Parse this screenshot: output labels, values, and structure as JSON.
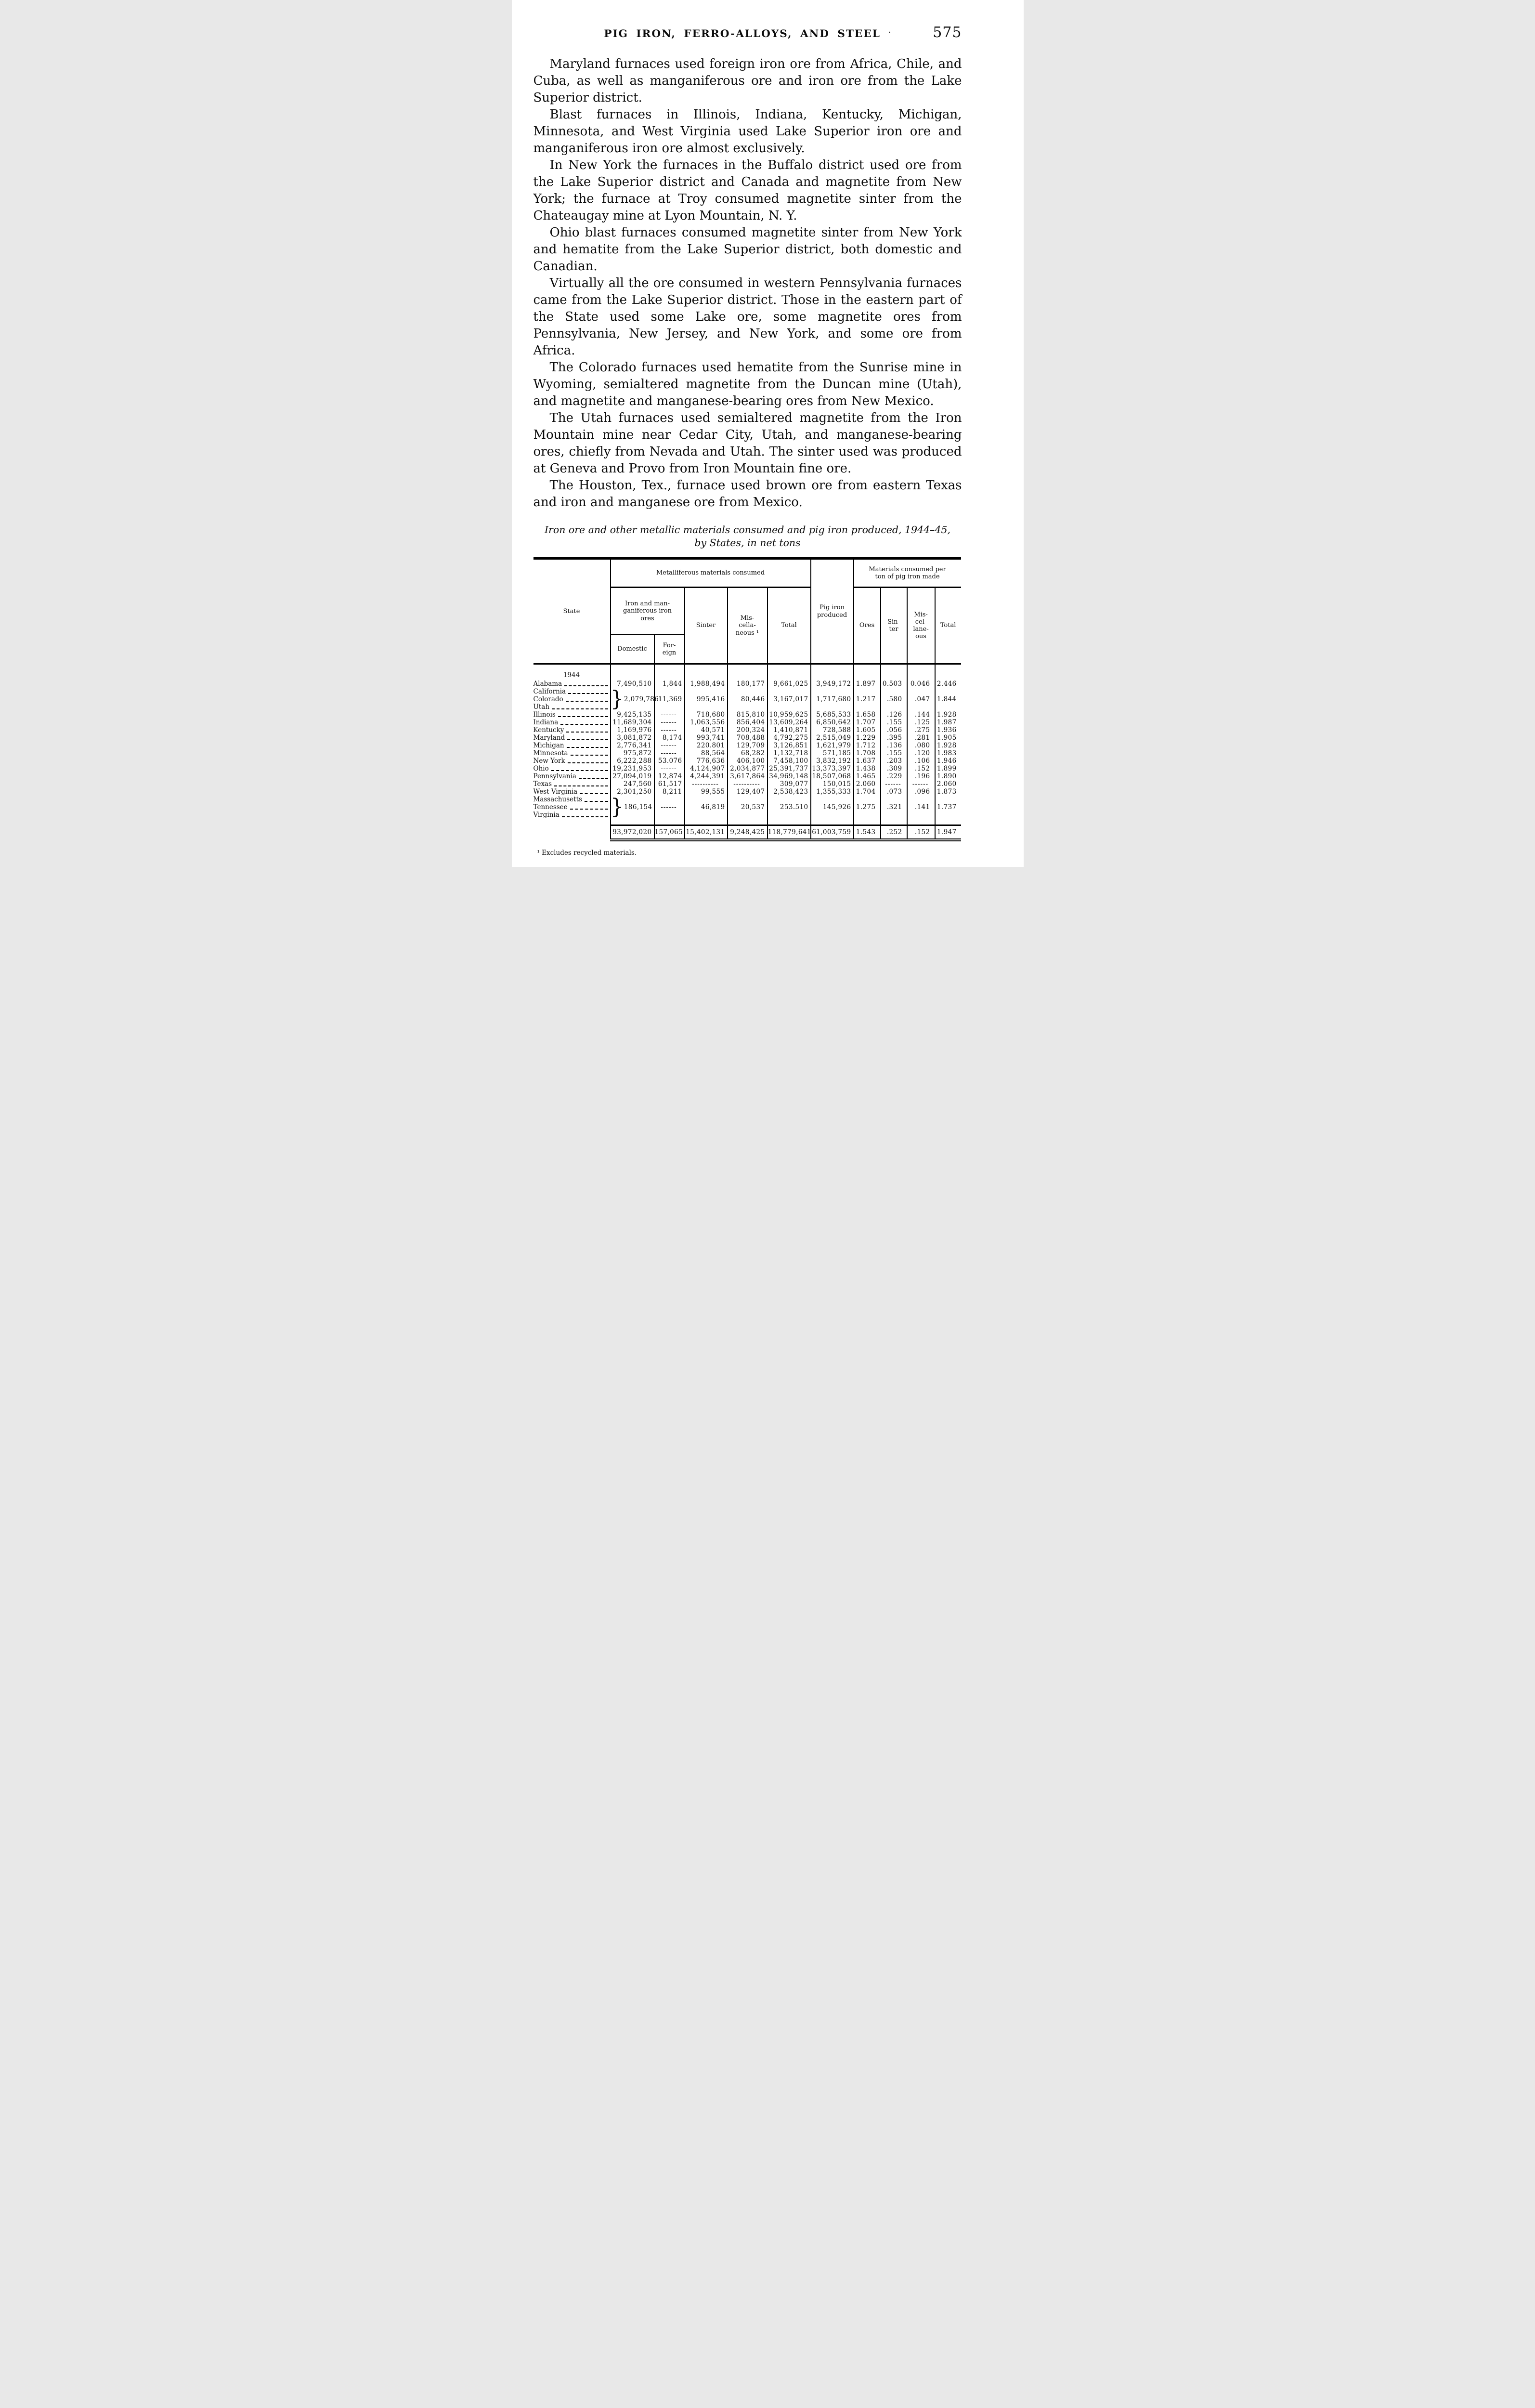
{
  "header": {
    "title": "PIG IRON, FERRO-ALLOYS, AND STEEL",
    "dot": "·",
    "page_number": "575"
  },
  "paragraphs": [
    "Maryland furnaces used foreign iron ore from Africa, Chile, and Cuba, as well as manganiferous ore and iron ore from the Lake Superior district.",
    "Blast furnaces in Illinois, Indiana, Kentucky, Michigan, Minnesota, and West Virginia used Lake Superior iron ore and manganiferous iron ore almost exclusively.",
    "In New York the furnaces in the Buffalo district used ore from the Lake Superior district and Canada and magnetite from New York; the furnace at Troy consumed magnetite sinter from the Chateaugay mine at Lyon Mountain, N. Y.",
    "Ohio blast furnaces consumed magnetite sinter from New York and hematite from the Lake Superior district, both domestic and Canadian.",
    "Virtually all the ore consumed in western Pennsylvania furnaces came from the Lake Superior district.  Those in the eastern part of the State used some Lake ore, some magnetite ores from Pennsylvania, New Jersey, and New York, and some ore from Africa.",
    "The Colorado furnaces used hematite from the Sunrise mine in Wyoming, semialtered magnetite from the Duncan mine (Utah), and magnetite and manganese-bearing ores from New Mexico.",
    "The Utah furnaces used semialtered magnetite from the Iron Mountain mine near Cedar City, Utah, and manganese-bearing ores, chiefly from Nevada and Utah.  The sinter used was produced at Geneva and Provo from Iron Mountain fine ore.",
    "The Houston, Tex., furnace used brown ore from eastern Texas and iron and manganese ore from Mexico."
  ],
  "table": {
    "caption_line1": "Iron ore and other metallic materials consumed and pig iron produced, 1944–45,",
    "caption_line2": "by States, in net tons",
    "headers": {
      "state": "State",
      "metalliferous": "Metalliferous materials consumed",
      "iron_ores": "Iron and man-\nganiferous iron\nores",
      "domestic": "Domestic",
      "foreign": "For-\neign",
      "sinter": "Sinter",
      "misc": "Mis-\ncella-\nneous ¹",
      "total": "Total",
      "pig_iron": "Pig iron\nproduced",
      "per_ton": "Materials consumed per\nton of pig iron made",
      "ores2": "Ores",
      "sinter2": "Sin-\nter",
      "misc2": "Mis-\ncel-\nlane-\nous",
      "total2": "Total"
    },
    "section_label": "1944",
    "rows": [
      {
        "state": "Alabama",
        "cells": [
          "7,490,510",
          "1,844",
          "1,988,494",
          "180,177",
          "9,661,025",
          "3,949,172",
          "1.897",
          "0.503",
          "0.046",
          "2.446"
        ]
      },
      {
        "states": [
          "California",
          "Colorado",
          "Utah"
        ],
        "brace": "}",
        "cells": [
          "2,079,786",
          "11,369",
          "995,416",
          "80,446",
          "3,167,017",
          "1,717,680",
          "1.217",
          ".580",
          ".047",
          "1.844"
        ]
      },
      {
        "state": "Illinois",
        "cells": [
          "9,425,135",
          "------",
          "718,680",
          "815,810",
          "10,959,625",
          "5,685,533",
          "1.658",
          ".126",
          ".144",
          "1.928"
        ]
      },
      {
        "state": "Indiana",
        "cells": [
          "11,689,304",
          "------",
          "1,063,556",
          "856,404",
          "13,609,264",
          "6,850,642",
          "1.707",
          ".155",
          ".125",
          "1.987"
        ]
      },
      {
        "state": "Kentucky",
        "cells": [
          "1,169,976",
          "------",
          "40,571",
          "200,324",
          "1,410,871",
          "728,588",
          "1.605",
          ".056",
          ".275",
          "1.936"
        ]
      },
      {
        "state": "Maryland",
        "cells": [
          "3,081,872",
          "8,174",
          "993,741",
          "708,488",
          "4,792,275",
          "2,515,049",
          "1.229",
          ".395",
          ".281",
          "1.905"
        ]
      },
      {
        "state": "Michigan",
        "cells": [
          "2,776,341",
          "------",
          "220.801",
          "129,709",
          "3,126,851",
          "1,621,979",
          "1.712",
          ".136",
          ".080",
          "1.928"
        ]
      },
      {
        "state": "Minnesota",
        "cells": [
          "975,872",
          "------",
          "88,564",
          "68,282",
          "1,132,718",
          "571,185",
          "1.708",
          ".155",
          ".120",
          "1.983"
        ]
      },
      {
        "state": "New York",
        "cells": [
          "6,222,288",
          "53.076",
          "776,636",
          "406,100",
          "7,458,100",
          "3,832,192",
          "1.637",
          ".203",
          ".106",
          "1.946"
        ]
      },
      {
        "state": "Ohio",
        "cells": [
          "19,231,953",
          "------",
          "4,124,907",
          "2,034,877",
          "25,391,737",
          "13,373,397",
          "1.438",
          ".309",
          ".152",
          "1.899"
        ]
      },
      {
        "state": "Pennsylvania",
        "cells": [
          "27,094,019",
          "12,874",
          "4,244,391",
          "3,617,864",
          "34,969,148",
          "18,507,068",
          "1.465",
          ".229",
          ".196",
          "1.890"
        ]
      },
      {
        "state": "Texas",
        "cells": [
          "247,560",
          "61,517",
          "----------",
          "----------",
          "309,077",
          "150,015",
          "2.060",
          "------",
          "------",
          "2.060"
        ]
      },
      {
        "state": "West Virginia",
        "cells": [
          "2,301,250",
          "8,211",
          "99,555",
          "129,407",
          "2,538,423",
          "1,355,333",
          "1.704",
          ".073",
          ".096",
          "1.873"
        ]
      },
      {
        "states": [
          "Massachusetts",
          "Tennessee",
          "Virginia"
        ],
        "brace": "}",
        "cells": [
          "186,154",
          "------",
          "46,819",
          "20,537",
          "253.510",
          "145,926",
          "1.275",
          ".321",
          ".141",
          "1.737"
        ]
      }
    ],
    "total_cells": [
      "93,972,020",
      "157,065",
      "15,402,131",
      "9,248,425",
      "118,779,641",
      "61,003,759",
      "1.543",
      ".252",
      ".152",
      "1.947"
    ],
    "footnote": "¹ Excludes recycled materials."
  }
}
